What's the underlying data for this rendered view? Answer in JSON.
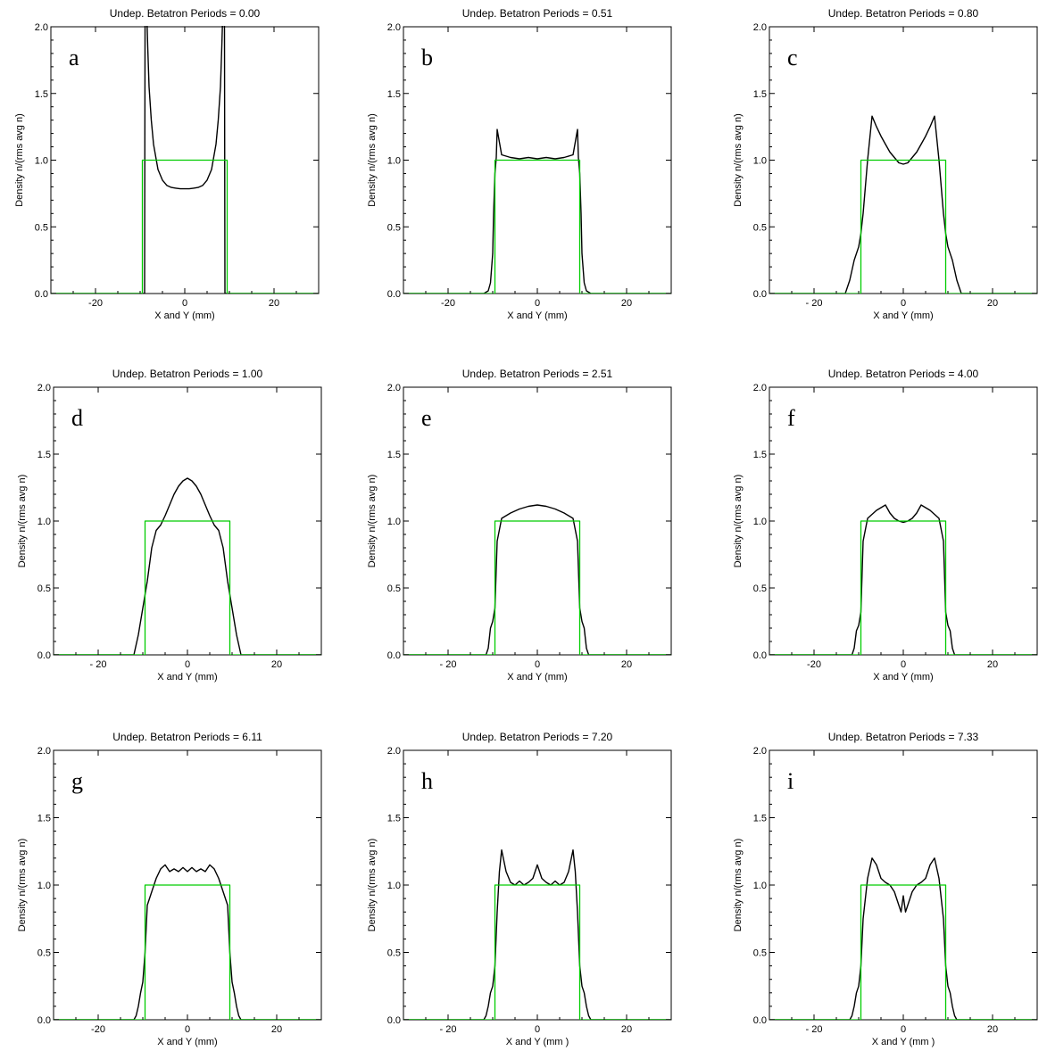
{
  "chart_data": [
    {
      "type": "line",
      "panel_label": "a",
      "title": "Undep. Betatron Periods =  0.00",
      "xlabel": "X and Y (mm)",
      "ylabel": "Density n/(rms avg n)",
      "xlim": [
        -30,
        30
      ],
      "ylim": [
        0,
        2
      ],
      "xticks": [
        -20,
        0,
        20
      ],
      "xtick_labels": [
        "-20",
        "0",
        "20"
      ],
      "yticks": [
        0,
        0.5,
        1,
        1.5,
        2
      ],
      "ytick_labels": [
        "0.0",
        "0.5",
        "1.0",
        "1.5",
        "2.0"
      ],
      "series": [
        {
          "color": "#000000",
          "x": [
            -30,
            -9,
            -8.9,
            -8.6,
            -8.3,
            -8,
            -7.5,
            -7,
            -6,
            -5,
            -4,
            -3,
            -2,
            -1,
            0,
            1,
            2,
            3,
            4,
            5,
            6,
            7,
            7.5,
            8,
            8.3,
            8.6,
            8.9,
            9,
            30
          ],
          "y": [
            0,
            0,
            2,
            2.2,
            1.85,
            1.55,
            1.3,
            1.12,
            0.93,
            0.85,
            0.81,
            0.795,
            0.79,
            0.785,
            0.785,
            0.785,
            0.79,
            0.795,
            0.81,
            0.85,
            0.93,
            1.12,
            1.3,
            1.55,
            1.85,
            2.2,
            2,
            0,
            0
          ]
        },
        {
          "color": "#00cc00",
          "x": [
            -30,
            -9.5,
            -9.5,
            9.5,
            9.5,
            30
          ],
          "y": [
            0,
            0,
            1,
            1,
            0,
            0
          ]
        }
      ]
    },
    {
      "type": "line",
      "panel_label": "b",
      "title": "Undep. Betatron Periods =  0.51",
      "xlabel": "X and Y (mm)",
      "ylabel": "Density n/(rms avg n)",
      "xlim": [
        -30,
        30
      ],
      "ylim": [
        0,
        2
      ],
      "xticks": [
        -20,
        0,
        20
      ],
      "xtick_labels": [
        "-20",
        "0",
        "20"
      ],
      "yticks": [
        0,
        0.5,
        1,
        1.5,
        2
      ],
      "ytick_labels": [
        "0.0",
        "0.5",
        "1.0",
        "1.5",
        "2.0"
      ],
      "series": [
        {
          "color": "#000000",
          "x": [
            -30,
            -12,
            -11,
            -10.5,
            -10,
            -9.8,
            -9.5,
            -9.2,
            -9,
            -8,
            -6,
            -4,
            -2,
            0,
            2,
            4,
            6,
            8,
            9,
            9.2,
            9.5,
            9.8,
            10,
            10.5,
            11,
            12,
            30
          ],
          "y": [
            0,
            0,
            0.02,
            0.08,
            0.3,
            0.6,
            0.9,
            1.02,
            1.23,
            1.04,
            1.02,
            1.01,
            1.02,
            1.01,
            1.02,
            1.01,
            1.02,
            1.04,
            1.23,
            1.02,
            0.9,
            0.6,
            0.3,
            0.08,
            0.02,
            0,
            0
          ]
        },
        {
          "color": "#00cc00",
          "x": [
            -30,
            -9.5,
            -9.5,
            9.5,
            9.5,
            30
          ],
          "y": [
            0,
            0,
            1,
            1,
            0,
            0
          ]
        }
      ]
    },
    {
      "type": "line",
      "panel_label": "c",
      "title": "Undep. Betatron Periods =  0.80",
      "xlabel": "X and Y (mm)",
      "ylabel": "Density n/(rms avg n)",
      "xlim": [
        -30,
        30
      ],
      "ylim": [
        0,
        2
      ],
      "xticks": [
        -20,
        0,
        20
      ],
      "xtick_labels": [
        "- 20",
        "0",
        "20"
      ],
      "yticks": [
        0,
        0.5,
        1,
        1.5,
        2
      ],
      "ytick_labels": [
        "0.0",
        "0.5",
        "1.0",
        "1.5",
        "2.0"
      ],
      "series": [
        {
          "color": "#000000",
          "x": [
            -30,
            -13,
            -12,
            -11,
            -10,
            -9.5,
            -9,
            -8,
            -7,
            -6,
            -5,
            -4,
            -3,
            -2,
            -1,
            0,
            1,
            2,
            3,
            4,
            5,
            6,
            7,
            8,
            9,
            9.5,
            10,
            11,
            12,
            13,
            30
          ],
          "y": [
            0,
            0,
            0.1,
            0.25,
            0.35,
            0.45,
            0.6,
            1.0,
            1.33,
            1.25,
            1.18,
            1.12,
            1.06,
            1.02,
            0.98,
            0.97,
            0.98,
            1.02,
            1.06,
            1.12,
            1.18,
            1.25,
            1.33,
            1.0,
            0.6,
            0.45,
            0.35,
            0.25,
            0.1,
            0,
            0
          ]
        },
        {
          "color": "#00cc00",
          "x": [
            -30,
            -9.5,
            -9.5,
            9.5,
            9.5,
            30
          ],
          "y": [
            0,
            0,
            1,
            1,
            0,
            0
          ]
        }
      ]
    },
    {
      "type": "line",
      "panel_label": "d",
      "title": "Undep. Betatron Periods =  1.00",
      "xlabel": "X and Y (mm)",
      "ylabel": "Density n/(rms avg n)",
      "xlim": [
        -30,
        30
      ],
      "ylim": [
        0,
        2
      ],
      "xticks": [
        -20,
        0,
        20
      ],
      "xtick_labels": [
        "- 20",
        "0",
        "20"
      ],
      "yticks": [
        0,
        0.5,
        1,
        1.5,
        2
      ],
      "ytick_labels": [
        "0.0",
        "0.5",
        "1.0",
        "1.5",
        "2.0"
      ],
      "series": [
        {
          "color": "#000000",
          "x": [
            -30,
            -12,
            -11,
            -10,
            -9,
            -8,
            -7,
            -6,
            -5,
            -4,
            -3,
            -2,
            -1,
            0,
            1,
            2,
            3,
            4,
            5,
            6,
            7,
            8,
            9,
            10,
            11,
            12,
            30
          ],
          "y": [
            0,
            0,
            0.15,
            0.35,
            0.55,
            0.8,
            0.93,
            0.97,
            1.04,
            1.12,
            1.2,
            1.26,
            1.3,
            1.32,
            1.3,
            1.26,
            1.2,
            1.12,
            1.04,
            0.97,
            0.93,
            0.8,
            0.55,
            0.35,
            0.15,
            0,
            0
          ]
        },
        {
          "color": "#00cc00",
          "x": [
            -30,
            -9.5,
            -9.5,
            9.5,
            9.5,
            30
          ],
          "y": [
            0,
            0,
            1,
            1,
            0,
            0
          ]
        }
      ]
    },
    {
      "type": "line",
      "panel_label": "e",
      "title": "Undep. Betatron Periods =  2.51",
      "xlabel": "X and Y (mm)",
      "ylabel": "Density n/(rms avg n)",
      "xlim": [
        -30,
        30
      ],
      "ylim": [
        0,
        2
      ],
      "xticks": [
        -20,
        0,
        20
      ],
      "xtick_labels": [
        "- 20",
        "0",
        "20"
      ],
      "yticks": [
        0,
        0.5,
        1,
        1.5,
        2
      ],
      "ytick_labels": [
        "0.0",
        "0.5",
        "1.0",
        "1.5",
        "2.0"
      ],
      "series": [
        {
          "color": "#000000",
          "x": [
            -30,
            -11.5,
            -11,
            -10.5,
            -10,
            -9.5,
            -9,
            -8,
            -6,
            -4,
            -2,
            0,
            2,
            4,
            6,
            8,
            9,
            9.5,
            10,
            10.5,
            11,
            11.5,
            30
          ],
          "y": [
            0,
            0,
            0.05,
            0.2,
            0.25,
            0.35,
            0.85,
            1.02,
            1.06,
            1.09,
            1.11,
            1.12,
            1.11,
            1.09,
            1.06,
            1.02,
            0.85,
            0.35,
            0.25,
            0.2,
            0.05,
            0,
            0
          ]
        },
        {
          "color": "#00cc00",
          "x": [
            -30,
            -9.5,
            -9.5,
            9.5,
            9.5,
            30
          ],
          "y": [
            0,
            0,
            1,
            1,
            0,
            0
          ]
        }
      ]
    },
    {
      "type": "line",
      "panel_label": "f",
      "title": "Undep. Betatron Periods =  4.00",
      "xlabel": "X and Y (mm)",
      "ylabel": "Density n/(rms avg n)",
      "xlim": [
        -30,
        30
      ],
      "ylim": [
        0,
        2
      ],
      "xticks": [
        -20,
        0,
        20
      ],
      "xtick_labels": [
        "-20",
        "0",
        "20"
      ],
      "yticks": [
        0,
        0.5,
        1,
        1.5,
        2
      ],
      "ytick_labels": [
        "0.0",
        "0.5",
        "1.0",
        "1.5",
        "2.0"
      ],
      "series": [
        {
          "color": "#000000",
          "x": [
            -30,
            -11.5,
            -11,
            -10.5,
            -10,
            -9.5,
            -9,
            -8,
            -7,
            -6,
            -5,
            -4,
            -3,
            -2,
            -1,
            0,
            1,
            2,
            3,
            4,
            5,
            6,
            7,
            8,
            9,
            9.5,
            10,
            10.5,
            11,
            11.5,
            30
          ],
          "y": [
            0,
            0,
            0.05,
            0.18,
            0.22,
            0.32,
            0.85,
            1.02,
            1.05,
            1.08,
            1.1,
            1.12,
            1.06,
            1.02,
            1.0,
            0.99,
            1.0,
            1.02,
            1.06,
            1.12,
            1.1,
            1.08,
            1.05,
            1.02,
            0.85,
            0.32,
            0.22,
            0.18,
            0.05,
            0,
            0
          ]
        },
        {
          "color": "#00cc00",
          "x": [
            -30,
            -9.5,
            -9.5,
            9.5,
            9.5,
            30
          ],
          "y": [
            0,
            0,
            1,
            1,
            0,
            0
          ]
        }
      ]
    },
    {
      "type": "line",
      "panel_label": "g",
      "title": "Undep. Betatron Periods =  6.11",
      "xlabel": "X and Y (mm)",
      "ylabel": "Density n/(rms avg n)",
      "xlim": [
        -30,
        30
      ],
      "ylim": [
        0,
        2
      ],
      "xticks": [
        -20,
        0,
        20
      ],
      "xtick_labels": [
        "-20",
        "0",
        "20"
      ],
      "yticks": [
        0,
        0.5,
        1,
        1.5,
        2
      ],
      "ytick_labels": [
        "0.0",
        "0.5",
        "1.0",
        "1.5",
        "2.0"
      ],
      "series": [
        {
          "color": "#000000",
          "x": [
            -30,
            -12,
            -11.5,
            -11,
            -10.5,
            -10,
            -9.5,
            -9,
            -8,
            -7,
            -6,
            -5,
            -4,
            -3,
            -2,
            -1,
            0,
            1,
            2,
            3,
            4,
            5,
            6,
            7,
            8,
            9,
            9.5,
            10,
            10.5,
            11,
            11.5,
            12,
            30
          ],
          "y": [
            0,
            0,
            0.03,
            0.1,
            0.2,
            0.28,
            0.5,
            0.85,
            0.95,
            1.05,
            1.12,
            1.15,
            1.1,
            1.12,
            1.1,
            1.13,
            1.1,
            1.13,
            1.1,
            1.12,
            1.1,
            1.15,
            1.12,
            1.05,
            0.95,
            0.85,
            0.5,
            0.28,
            0.2,
            0.1,
            0.03,
            0,
            0
          ]
        },
        {
          "color": "#00cc00",
          "x": [
            -30,
            -9.5,
            -9.5,
            9.5,
            9.5,
            30
          ],
          "y": [
            0,
            0,
            1,
            1,
            0,
            0
          ]
        }
      ]
    },
    {
      "type": "line",
      "panel_label": "h",
      "title": "Undep. Betatron Periods =  7.20",
      "xlabel": "X and Y (mm )",
      "ylabel": "Density n/(rms avg n)",
      "xlim": [
        -30,
        30
      ],
      "ylim": [
        0,
        2
      ],
      "xticks": [
        -20,
        0,
        20
      ],
      "xtick_labels": [
        "- 20",
        "0",
        "20"
      ],
      "yticks": [
        0,
        0.5,
        1,
        1.5,
        2
      ],
      "ytick_labels": [
        "0.0",
        "0.5",
        "1.0",
        "1.5",
        "2.0"
      ],
      "series": [
        {
          "color": "#000000",
          "x": [
            -30,
            -12,
            -11.5,
            -11,
            -10.5,
            -10,
            -9.5,
            -9,
            -8.5,
            -8,
            -7,
            -6,
            -5,
            -4,
            -3,
            -2,
            -1,
            0,
            1,
            2,
            3,
            4,
            5,
            6,
            7,
            8,
            8.5,
            9,
            9.5,
            10,
            10.5,
            11,
            11.5,
            12,
            30
          ],
          "y": [
            0,
            0,
            0.03,
            0.1,
            0.2,
            0.25,
            0.4,
            0.8,
            1.1,
            1.26,
            1.1,
            1.02,
            1.0,
            1.03,
            1.0,
            1.02,
            1.05,
            1.15,
            1.05,
            1.02,
            1.0,
            1.03,
            1.0,
            1.02,
            1.1,
            1.26,
            1.1,
            0.8,
            0.4,
            0.25,
            0.2,
            0.1,
            0.03,
            0,
            0
          ]
        },
        {
          "color": "#00cc00",
          "x": [
            -30,
            -9.5,
            -9.5,
            9.5,
            9.5,
            30
          ],
          "y": [
            0,
            0,
            1,
            1,
            0,
            0
          ]
        }
      ]
    },
    {
      "type": "line",
      "panel_label": "i",
      "title": "Undep. Betatron Periods =  7.33",
      "xlabel": "X and Y (mm )",
      "ylabel": "Density n/(rms avg n)",
      "xlim": [
        -30,
        30
      ],
      "ylim": [
        0,
        2
      ],
      "xticks": [
        -20,
        0,
        20
      ],
      "xtick_labels": [
        "- 20",
        "0",
        "20"
      ],
      "yticks": [
        0,
        0.5,
        1,
        1.5,
        2
      ],
      "ytick_labels": [
        "0.0",
        "0.5",
        "1.0",
        "1.5",
        "2.0"
      ],
      "series": [
        {
          "color": "#000000",
          "x": [
            -30,
            -12,
            -11.5,
            -11,
            -10.5,
            -10,
            -9.5,
            -9,
            -8,
            -7,
            -6,
            -5,
            -4,
            -3,
            -2,
            -1,
            -0.5,
            0,
            0.5,
            1,
            2,
            3,
            4,
            5,
            6,
            7,
            8,
            9,
            9.5,
            10,
            10.5,
            11,
            11.5,
            12,
            30
          ],
          "y": [
            0,
            0,
            0.03,
            0.1,
            0.2,
            0.25,
            0.4,
            0.75,
            1.05,
            1.2,
            1.15,
            1.05,
            1.02,
            1.0,
            0.95,
            0.85,
            0.8,
            0.92,
            0.8,
            0.85,
            0.95,
            1.0,
            1.02,
            1.05,
            1.15,
            1.2,
            1.05,
            0.75,
            0.4,
            0.25,
            0.2,
            0.1,
            0.03,
            0,
            0
          ]
        },
        {
          "color": "#00cc00",
          "x": [
            -30,
            -9.5,
            -9.5,
            9.5,
            9.5,
            30
          ],
          "y": [
            0,
            0,
            1,
            1,
            0,
            0
          ]
        }
      ]
    }
  ]
}
